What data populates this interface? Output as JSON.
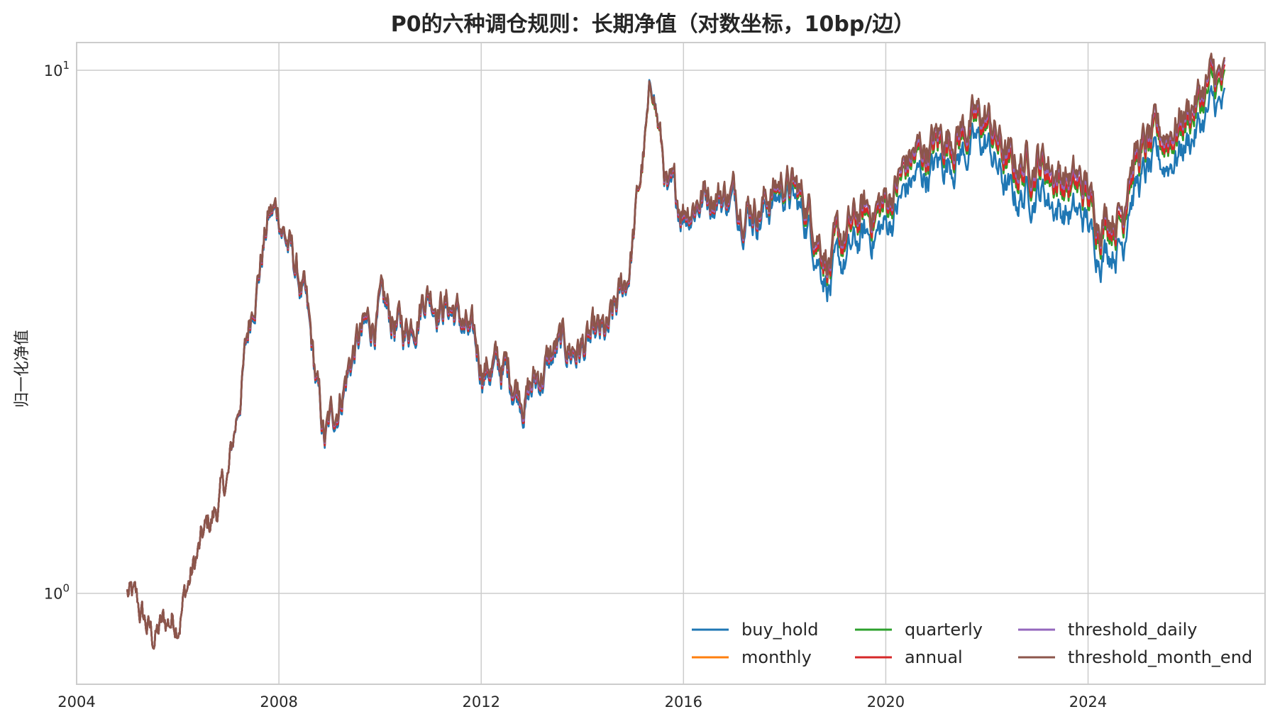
{
  "chart_data": {
    "type": "line",
    "title": "P0的六种调仓规则：长期净值（对数坐标，10bp/边）",
    "xlabel": "",
    "ylabel": "归一化净值",
    "x_ticks": [
      "2004",
      "2008",
      "2012",
      "2016",
      "2020",
      "2024"
    ],
    "y_ticks": [
      {
        "value": 1,
        "base": "10",
        "exp": "0"
      },
      {
        "value": 10,
        "base": "10",
        "exp": "1"
      }
    ],
    "yscale": "log",
    "xlim": [
      2004.0,
      2027.5
    ],
    "ylim": [
      0.67,
      11.3
    ],
    "grid": true,
    "legend": {
      "placement": "lower-right",
      "columns": 3
    },
    "series": [
      {
        "name": "buy_hold",
        "color": "#1f77b4",
        "points": [
          [
            2005.0,
            1.0
          ],
          [
            2005.5,
            0.82
          ],
          [
            2006.0,
            0.92
          ],
          [
            2006.5,
            1.25
          ],
          [
            2007.0,
            1.65
          ],
          [
            2007.5,
            3.7
          ],
          [
            2007.8,
            5.2
          ],
          [
            2008.0,
            5.3
          ],
          [
            2008.5,
            3.6
          ],
          [
            2008.9,
            1.9
          ],
          [
            2009.5,
            2.9
          ],
          [
            2010.0,
            3.4
          ],
          [
            2010.5,
            3.1
          ],
          [
            2010.9,
            3.8
          ],
          [
            2011.5,
            3.4
          ],
          [
            2012.0,
            2.7
          ],
          [
            2012.5,
            2.6
          ],
          [
            2012.9,
            2.35
          ],
          [
            2013.5,
            2.85
          ],
          [
            2014.0,
            2.9
          ],
          [
            2014.5,
            3.0
          ],
          [
            2014.9,
            4.0
          ],
          [
            2015.4,
            9.6
          ],
          [
            2015.7,
            5.5
          ],
          [
            2016.0,
            5.4
          ],
          [
            2016.5,
            5.8
          ],
          [
            2017.0,
            5.6
          ],
          [
            2017.5,
            5.3
          ],
          [
            2018.0,
            5.9
          ],
          [
            2018.5,
            5.0
          ],
          [
            2018.9,
            3.9
          ],
          [
            2019.5,
            4.7
          ],
          [
            2020.0,
            5.0
          ],
          [
            2020.5,
            6.1
          ],
          [
            2021.0,
            6.5
          ],
          [
            2021.5,
            7.0
          ],
          [
            2022.0,
            7.2
          ],
          [
            2022.5,
            5.6
          ],
          [
            2023.0,
            6.0
          ],
          [
            2023.5,
            5.4
          ],
          [
            2024.0,
            5.1
          ],
          [
            2024.1,
            4.6
          ],
          [
            2024.7,
            4.7
          ],
          [
            2024.8,
            5.9
          ],
          [
            2025.5,
            6.6
          ],
          [
            2026.0,
            7.4
          ],
          [
            2026.5,
            8.5
          ],
          [
            2026.7,
            8.3
          ]
        ]
      },
      {
        "name": "monthly",
        "color": "#ff7f0e",
        "points": [
          [
            2005.0,
            1.0
          ],
          [
            2005.5,
            0.82
          ],
          [
            2006.0,
            0.92
          ],
          [
            2006.5,
            1.25
          ],
          [
            2007.0,
            1.65
          ],
          [
            2007.5,
            3.75
          ],
          [
            2007.8,
            5.25
          ],
          [
            2008.0,
            5.35
          ],
          [
            2008.5,
            3.65
          ],
          [
            2008.9,
            1.92
          ],
          [
            2009.5,
            2.95
          ],
          [
            2010.0,
            3.45
          ],
          [
            2010.5,
            3.15
          ],
          [
            2010.9,
            3.85
          ],
          [
            2011.5,
            3.45
          ],
          [
            2012.0,
            2.75
          ],
          [
            2012.5,
            2.65
          ],
          [
            2012.9,
            2.4
          ],
          [
            2013.5,
            2.9
          ],
          [
            2014.0,
            2.95
          ],
          [
            2014.5,
            3.05
          ],
          [
            2014.9,
            4.05
          ],
          [
            2015.4,
            9.4
          ],
          [
            2015.7,
            5.6
          ],
          [
            2016.0,
            5.5
          ],
          [
            2016.5,
            5.9
          ],
          [
            2017.0,
            5.75
          ],
          [
            2017.5,
            5.5
          ],
          [
            2018.0,
            6.1
          ],
          [
            2018.5,
            5.3
          ],
          [
            2018.9,
            4.2
          ],
          [
            2019.5,
            5.1
          ],
          [
            2020.0,
            5.4
          ],
          [
            2020.5,
            6.6
          ],
          [
            2021.0,
            7.0
          ],
          [
            2021.5,
            7.5
          ],
          [
            2022.0,
            7.8
          ],
          [
            2022.5,
            6.2
          ],
          [
            2023.0,
            6.6
          ],
          [
            2023.5,
            6.0
          ],
          [
            2024.0,
            5.6
          ],
          [
            2024.1,
            5.1
          ],
          [
            2024.7,
            5.2
          ],
          [
            2024.8,
            6.5
          ],
          [
            2025.5,
            7.2
          ],
          [
            2026.0,
            8.1
          ],
          [
            2026.5,
            9.2
          ],
          [
            2026.7,
            9.0
          ]
        ]
      },
      {
        "name": "quarterly",
        "color": "#2ca02c",
        "points": [
          [
            2005.0,
            1.0
          ],
          [
            2005.5,
            0.82
          ],
          [
            2006.0,
            0.92
          ],
          [
            2006.5,
            1.25
          ],
          [
            2007.0,
            1.65
          ],
          [
            2007.5,
            3.75
          ],
          [
            2007.8,
            5.25
          ],
          [
            2008.0,
            5.35
          ],
          [
            2008.5,
            3.65
          ],
          [
            2008.9,
            1.92
          ],
          [
            2009.5,
            2.95
          ],
          [
            2010.0,
            3.45
          ],
          [
            2010.5,
            3.15
          ],
          [
            2010.9,
            3.85
          ],
          [
            2011.5,
            3.45
          ],
          [
            2012.0,
            2.75
          ],
          [
            2012.5,
            2.65
          ],
          [
            2012.9,
            2.4
          ],
          [
            2013.5,
            2.9
          ],
          [
            2014.0,
            2.95
          ],
          [
            2014.5,
            3.05
          ],
          [
            2014.9,
            4.05
          ],
          [
            2015.4,
            9.4
          ],
          [
            2015.7,
            5.6
          ],
          [
            2016.0,
            5.5
          ],
          [
            2016.5,
            5.9
          ],
          [
            2017.0,
            5.75
          ],
          [
            2017.5,
            5.5
          ],
          [
            2018.0,
            6.1
          ],
          [
            2018.5,
            5.3
          ],
          [
            2018.9,
            4.2
          ],
          [
            2019.5,
            5.1
          ],
          [
            2020.0,
            5.4
          ],
          [
            2020.5,
            6.6
          ],
          [
            2021.0,
            7.0
          ],
          [
            2021.5,
            7.5
          ],
          [
            2022.0,
            7.8
          ],
          [
            2022.5,
            6.2
          ],
          [
            2023.0,
            6.6
          ],
          [
            2023.5,
            6.0
          ],
          [
            2024.0,
            5.6
          ],
          [
            2024.1,
            5.1
          ],
          [
            2024.7,
            5.2
          ],
          [
            2024.8,
            6.5
          ],
          [
            2025.5,
            7.2
          ],
          [
            2026.0,
            8.1
          ],
          [
            2026.5,
            9.2
          ],
          [
            2026.7,
            9.0
          ]
        ]
      },
      {
        "name": "annual",
        "color": "#d62728",
        "points": [
          [
            2005.0,
            1.0
          ],
          [
            2005.5,
            0.82
          ],
          [
            2006.0,
            0.92
          ],
          [
            2006.5,
            1.25
          ],
          [
            2007.0,
            1.65
          ],
          [
            2007.5,
            3.75
          ],
          [
            2007.8,
            5.25
          ],
          [
            2008.0,
            5.35
          ],
          [
            2008.5,
            3.65
          ],
          [
            2008.9,
            1.92
          ],
          [
            2009.5,
            2.95
          ],
          [
            2010.0,
            3.45
          ],
          [
            2010.5,
            3.15
          ],
          [
            2010.9,
            3.85
          ],
          [
            2011.5,
            3.45
          ],
          [
            2012.0,
            2.75
          ],
          [
            2012.5,
            2.65
          ],
          [
            2012.9,
            2.4
          ],
          [
            2013.5,
            2.9
          ],
          [
            2014.0,
            2.95
          ],
          [
            2014.5,
            3.05
          ],
          [
            2014.9,
            4.05
          ],
          [
            2015.4,
            9.45
          ],
          [
            2015.7,
            5.6
          ],
          [
            2016.0,
            5.5
          ],
          [
            2016.5,
            5.9
          ],
          [
            2017.0,
            5.75
          ],
          [
            2017.5,
            5.5
          ],
          [
            2018.0,
            6.15
          ],
          [
            2018.5,
            5.35
          ],
          [
            2018.9,
            4.25
          ],
          [
            2019.5,
            5.15
          ],
          [
            2020.0,
            5.5
          ],
          [
            2020.5,
            6.7
          ],
          [
            2021.0,
            7.1
          ],
          [
            2021.5,
            7.6
          ],
          [
            2022.0,
            7.9
          ],
          [
            2022.5,
            6.3
          ],
          [
            2023.0,
            6.7
          ],
          [
            2023.5,
            6.1
          ],
          [
            2024.0,
            5.7
          ],
          [
            2024.1,
            5.2
          ],
          [
            2024.7,
            5.3
          ],
          [
            2024.8,
            6.6
          ],
          [
            2025.5,
            7.3
          ],
          [
            2026.0,
            8.3
          ],
          [
            2026.5,
            9.5
          ],
          [
            2026.7,
            9.2
          ]
        ]
      },
      {
        "name": "threshold_daily",
        "color": "#9467bd",
        "points": [
          [
            2005.0,
            1.0
          ],
          [
            2005.5,
            0.82
          ],
          [
            2006.0,
            0.92
          ],
          [
            2006.5,
            1.25
          ],
          [
            2007.0,
            1.65
          ],
          [
            2007.5,
            3.78
          ],
          [
            2007.8,
            5.28
          ],
          [
            2008.0,
            5.38
          ],
          [
            2008.5,
            3.68
          ],
          [
            2008.9,
            1.94
          ],
          [
            2009.5,
            2.98
          ],
          [
            2010.0,
            3.48
          ],
          [
            2010.5,
            3.18
          ],
          [
            2010.9,
            3.88
          ],
          [
            2011.5,
            3.48
          ],
          [
            2012.0,
            2.78
          ],
          [
            2012.5,
            2.68
          ],
          [
            2012.9,
            2.42
          ],
          [
            2013.5,
            2.92
          ],
          [
            2014.0,
            2.98
          ],
          [
            2014.5,
            3.08
          ],
          [
            2014.9,
            4.08
          ],
          [
            2015.4,
            9.5
          ],
          [
            2015.7,
            5.65
          ],
          [
            2016.0,
            5.55
          ],
          [
            2016.5,
            5.95
          ],
          [
            2017.0,
            5.8
          ],
          [
            2017.5,
            5.55
          ],
          [
            2018.0,
            6.2
          ],
          [
            2018.5,
            5.45
          ],
          [
            2018.9,
            4.35
          ],
          [
            2019.5,
            5.3
          ],
          [
            2020.0,
            5.6
          ],
          [
            2020.5,
            6.8
          ],
          [
            2021.0,
            7.3
          ],
          [
            2021.5,
            7.8
          ],
          [
            2022.0,
            8.1
          ],
          [
            2022.5,
            6.5
          ],
          [
            2023.0,
            6.9
          ],
          [
            2023.5,
            6.3
          ],
          [
            2024.0,
            5.9
          ],
          [
            2024.1,
            5.35
          ],
          [
            2024.7,
            5.45
          ],
          [
            2024.8,
            6.8
          ],
          [
            2025.5,
            7.5
          ],
          [
            2026.0,
            8.5
          ],
          [
            2026.5,
            9.7
          ],
          [
            2026.7,
            9.4
          ]
        ]
      },
      {
        "name": "threshold_month_end",
        "color": "#8c564b",
        "points": [
          [
            2005.0,
            1.0
          ],
          [
            2005.5,
            0.82
          ],
          [
            2006.0,
            0.92
          ],
          [
            2006.5,
            1.25
          ],
          [
            2007.0,
            1.65
          ],
          [
            2007.5,
            3.8
          ],
          [
            2007.8,
            5.3
          ],
          [
            2008.0,
            5.4
          ],
          [
            2008.5,
            3.7
          ],
          [
            2008.9,
            1.95
          ],
          [
            2009.5,
            3.0
          ],
          [
            2010.0,
            3.5
          ],
          [
            2010.5,
            3.2
          ],
          [
            2010.9,
            3.9
          ],
          [
            2011.5,
            3.5
          ],
          [
            2012.0,
            2.8
          ],
          [
            2012.5,
            2.7
          ],
          [
            2012.9,
            2.45
          ],
          [
            2013.5,
            2.95
          ],
          [
            2014.0,
            3.0
          ],
          [
            2014.5,
            3.1
          ],
          [
            2014.9,
            4.1
          ],
          [
            2015.4,
            9.5
          ],
          [
            2015.7,
            5.7
          ],
          [
            2016.0,
            5.6
          ],
          [
            2016.5,
            6.0
          ],
          [
            2017.0,
            5.85
          ],
          [
            2017.5,
            5.6
          ],
          [
            2018.0,
            6.25
          ],
          [
            2018.5,
            5.5
          ],
          [
            2018.9,
            4.4
          ],
          [
            2019.5,
            5.35
          ],
          [
            2020.0,
            5.65
          ],
          [
            2020.5,
            6.9
          ],
          [
            2021.0,
            7.4
          ],
          [
            2021.5,
            7.9
          ],
          [
            2022.0,
            8.2
          ],
          [
            2022.5,
            6.6
          ],
          [
            2023.0,
            7.0
          ],
          [
            2023.5,
            6.4
          ],
          [
            2024.0,
            6.0
          ],
          [
            2024.1,
            5.4
          ],
          [
            2024.7,
            5.5
          ],
          [
            2024.8,
            6.9
          ],
          [
            2025.5,
            7.6
          ],
          [
            2026.0,
            8.6
          ],
          [
            2026.5,
            9.8
          ],
          [
            2026.7,
            9.5
          ]
        ]
      }
    ]
  }
}
